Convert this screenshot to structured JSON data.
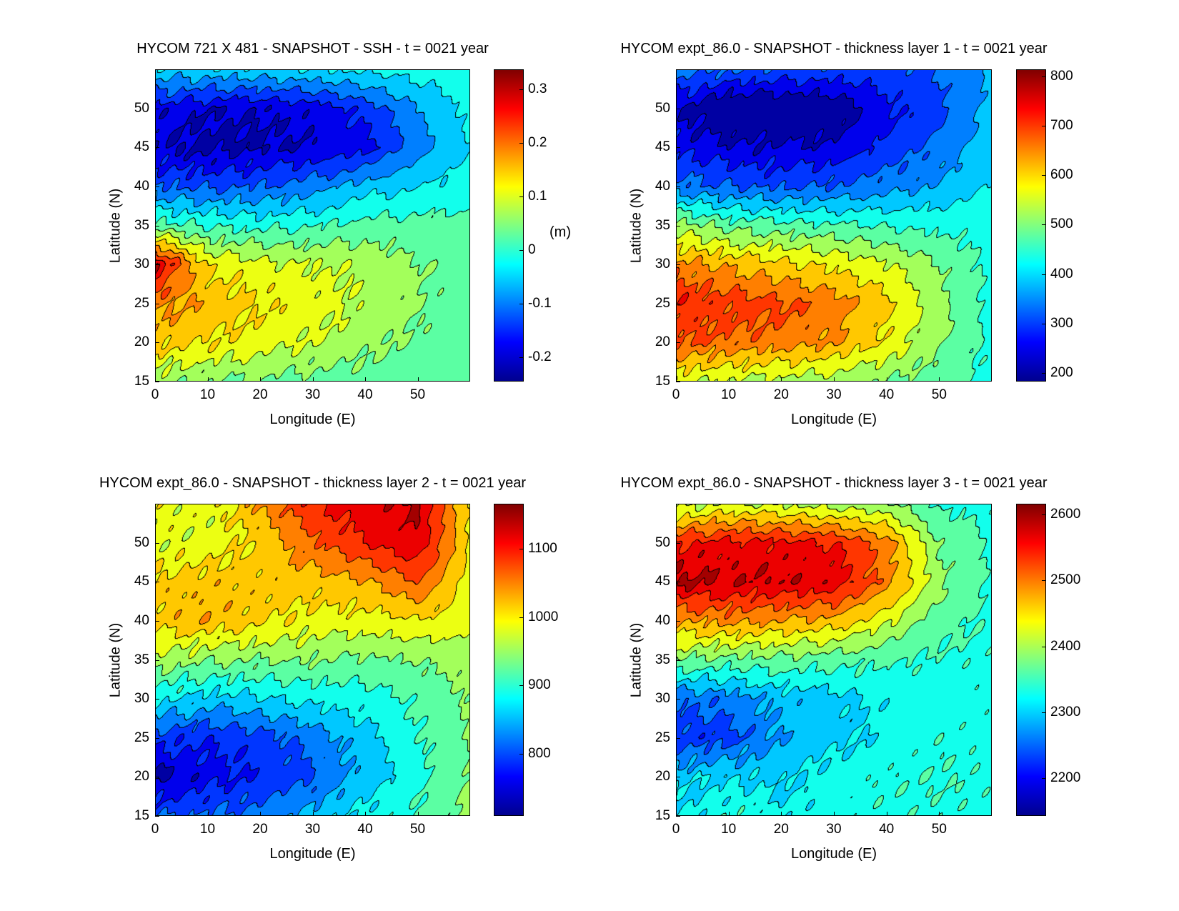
{
  "chart_data": [
    {
      "type": "heatmap",
      "title": "HYCOM 721 X 481 - SNAPSHOT - SSH - t = 0021 year",
      "xlabel": "Longitude (E)",
      "ylabel": "Latitude (N)",
      "xlim": [
        0,
        60
      ],
      "ylim": [
        15,
        55
      ],
      "xticks": [
        0,
        10,
        20,
        30,
        40,
        50
      ],
      "yticks": [
        15,
        20,
        25,
        30,
        35,
        40,
        45,
        50
      ],
      "colorbar": {
        "range": [
          -0.246,
          0.338
        ],
        "ticks": [
          -0.2,
          -0.1,
          0,
          0.1,
          0.2,
          0.3
        ],
        "tick_labels": [
          "-0.2",
          "-0.1",
          "0",
          "0.1",
          "0.2",
          "0.3"
        ],
        "label": "(m)"
      },
      "grid_lon": [
        0,
        10,
        20,
        30,
        40,
        50,
        60
      ],
      "grid_lat": [
        55,
        50,
        45,
        40,
        35,
        30,
        25,
        20,
        15
      ],
      "values": [
        [
          -0.05,
          -0.05,
          -0.05,
          -0.04,
          -0.03,
          -0.02,
          -0.01
        ],
        [
          -0.18,
          -0.2,
          -0.2,
          -0.19,
          -0.15,
          -0.08,
          -0.03
        ],
        [
          -0.2,
          -0.22,
          -0.21,
          -0.2,
          -0.18,
          -0.1,
          -0.04
        ],
        [
          -0.12,
          -0.13,
          -0.12,
          -0.1,
          -0.06,
          -0.04,
          -0.02
        ],
        [
          0.02,
          0.0,
          -0.01,
          0.0,
          0.02,
          0.02,
          0.02
        ],
        [
          0.3,
          0.12,
          0.1,
          0.09,
          0.08,
          0.05,
          0.03
        ],
        [
          0.18,
          0.16,
          0.13,
          0.11,
          0.08,
          0.05,
          0.02
        ],
        [
          0.15,
          0.13,
          0.11,
          0.09,
          0.06,
          0.04,
          0.02
        ],
        [
          0.06,
          0.05,
          0.04,
          0.03,
          0.03,
          0.03,
          0.03
        ]
      ]
    },
    {
      "type": "heatmap",
      "title": "HYCOM expt_86.0 - SNAPSHOT - thickness layer 1 - t = 0021 year",
      "xlabel": "Longitude (E)",
      "ylabel": "Latitude (N)",
      "xlim": [
        0,
        60
      ],
      "ylim": [
        15,
        55
      ],
      "xticks": [
        0,
        10,
        20,
        30,
        40,
        50
      ],
      "yticks": [
        15,
        20,
        25,
        30,
        35,
        40,
        45,
        50
      ],
      "colorbar": {
        "range": [
          182,
          815
        ],
        "ticks": [
          200,
          300,
          400,
          500,
          600,
          700,
          800
        ],
        "tick_labels": [
          "200",
          "300",
          "400",
          "500",
          "600",
          "700",
          "800"
        ],
        "label": ""
      },
      "grid_lon": [
        0,
        10,
        20,
        30,
        40,
        50,
        60
      ],
      "grid_lat": [
        55,
        50,
        45,
        40,
        35,
        30,
        25,
        20,
        15
      ],
      "values": [
        [
          330,
          320,
          310,
          300,
          300,
          320,
          370
        ],
        [
          230,
          170,
          170,
          190,
          260,
          300,
          380
        ],
        [
          260,
          240,
          230,
          240,
          280,
          330,
          390
        ],
        [
          330,
          320,
          310,
          320,
          340,
          370,
          410
        ],
        [
          520,
          480,
          470,
          460,
          450,
          440,
          440
        ],
        [
          650,
          620,
          600,
          580,
          550,
          500,
          440
        ],
        [
          720,
          700,
          690,
          660,
          600,
          520,
          440
        ],
        [
          690,
          670,
          660,
          640,
          580,
          510,
          440
        ],
        [
          550,
          540,
          530,
          520,
          500,
          470,
          440
        ]
      ]
    },
    {
      "type": "heatmap",
      "title": "HYCOM expt_86.0 - SNAPSHOT - thickness layer 2 - t = 0021 year",
      "xlabel": "Longitude (E)",
      "ylabel": "Latitude (N)",
      "xlim": [
        0,
        60
      ],
      "ylim": [
        15,
        55
      ],
      "xticks": [
        0,
        10,
        20,
        30,
        40,
        50
      ],
      "yticks": [
        15,
        20,
        25,
        30,
        35,
        40,
        45,
        50
      ],
      "colorbar": {
        "range": [
          709,
          1166
        ],
        "ticks": [
          800,
          900,
          1000,
          1100
        ],
        "tick_labels": [
          "800",
          "900",
          "1000",
          "1100"
        ],
        "label": ""
      },
      "grid_lon": [
        0,
        10,
        20,
        30,
        40,
        50,
        60
      ],
      "grid_lat": [
        55,
        50,
        45,
        40,
        35,
        30,
        25,
        20,
        15
      ],
      "values": [
        [
          990,
          980,
          1040,
          1100,
          1120,
          1140,
          1000
        ],
        [
          980,
          980,
          1010,
          1060,
          1100,
          1130,
          1000
        ],
        [
          1010,
          1020,
          1020,
          1020,
          1030,
          1070,
          990
        ],
        [
          1020,
          1030,
          1010,
          990,
          990,
          1000,
          980
        ],
        [
          960,
          940,
          940,
          940,
          930,
          940,
          950
        ],
        [
          880,
          860,
          870,
          880,
          890,
          910,
          940
        ],
        [
          790,
          780,
          790,
          820,
          860,
          900,
          940
        ],
        [
          730,
          760,
          780,
          800,
          850,
          890,
          940
        ],
        [
          800,
          810,
          820,
          850,
          880,
          910,
          950
        ]
      ]
    },
    {
      "type": "heatmap",
      "title": "HYCOM expt_86.0 - SNAPSHOT - thickness layer 3 - t = 0021 year",
      "xlabel": "Longitude (E)",
      "ylabel": "Latitude (N)",
      "xlim": [
        0,
        60
      ],
      "ylim": [
        15,
        55
      ],
      "xticks": [
        0,
        10,
        20,
        30,
        40,
        50
      ],
      "yticks": [
        15,
        20,
        25,
        30,
        35,
        40,
        45,
        50
      ],
      "colorbar": {
        "range": [
          2143,
          2616
        ],
        "ticks": [
          2200,
          2300,
          2400,
          2500,
          2600
        ],
        "tick_labels": [
          "2200",
          "2300",
          "2400",
          "2500",
          "2600"
        ],
        "label": ""
      },
      "grid_lon": [
        0,
        10,
        20,
        30,
        40,
        50,
        60
      ],
      "grid_lat": [
        55,
        50,
        45,
        40,
        35,
        30,
        25,
        20,
        15
      ],
      "values": [
        [
          2400,
          2420,
          2410,
          2400,
          2390,
          2340,
          2340
        ],
        [
          2550,
          2560,
          2560,
          2550,
          2500,
          2380,
          2340
        ],
        [
          2590,
          2580,
          2580,
          2570,
          2500,
          2390,
          2340
        ],
        [
          2480,
          2490,
          2480,
          2470,
          2420,
          2360,
          2340
        ],
        [
          2380,
          2370,
          2370,
          2360,
          2350,
          2340,
          2340
        ],
        [
          2250,
          2260,
          2290,
          2300,
          2320,
          2330,
          2340
        ],
        [
          2220,
          2230,
          2280,
          2300,
          2320,
          2340,
          2340
        ],
        [
          2300,
          2310,
          2300,
          2330,
          2340,
          2345,
          2340
        ],
        [
          2310,
          2340,
          2320,
          2330,
          2340,
          2340,
          2340
        ]
      ]
    }
  ]
}
